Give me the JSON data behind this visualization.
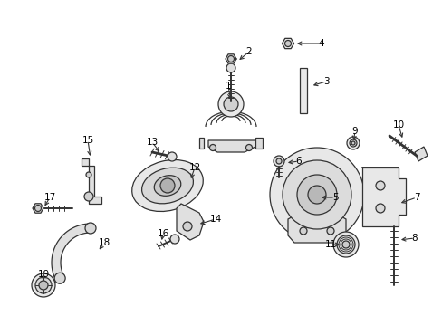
{
  "bg_color": "#ffffff",
  "line_color": "#333333",
  "label_color": "#000000",
  "figsize": [
    4.89,
    3.6
  ],
  "dpi": 100,
  "label_fontsize": 7.5,
  "lw": 0.9
}
